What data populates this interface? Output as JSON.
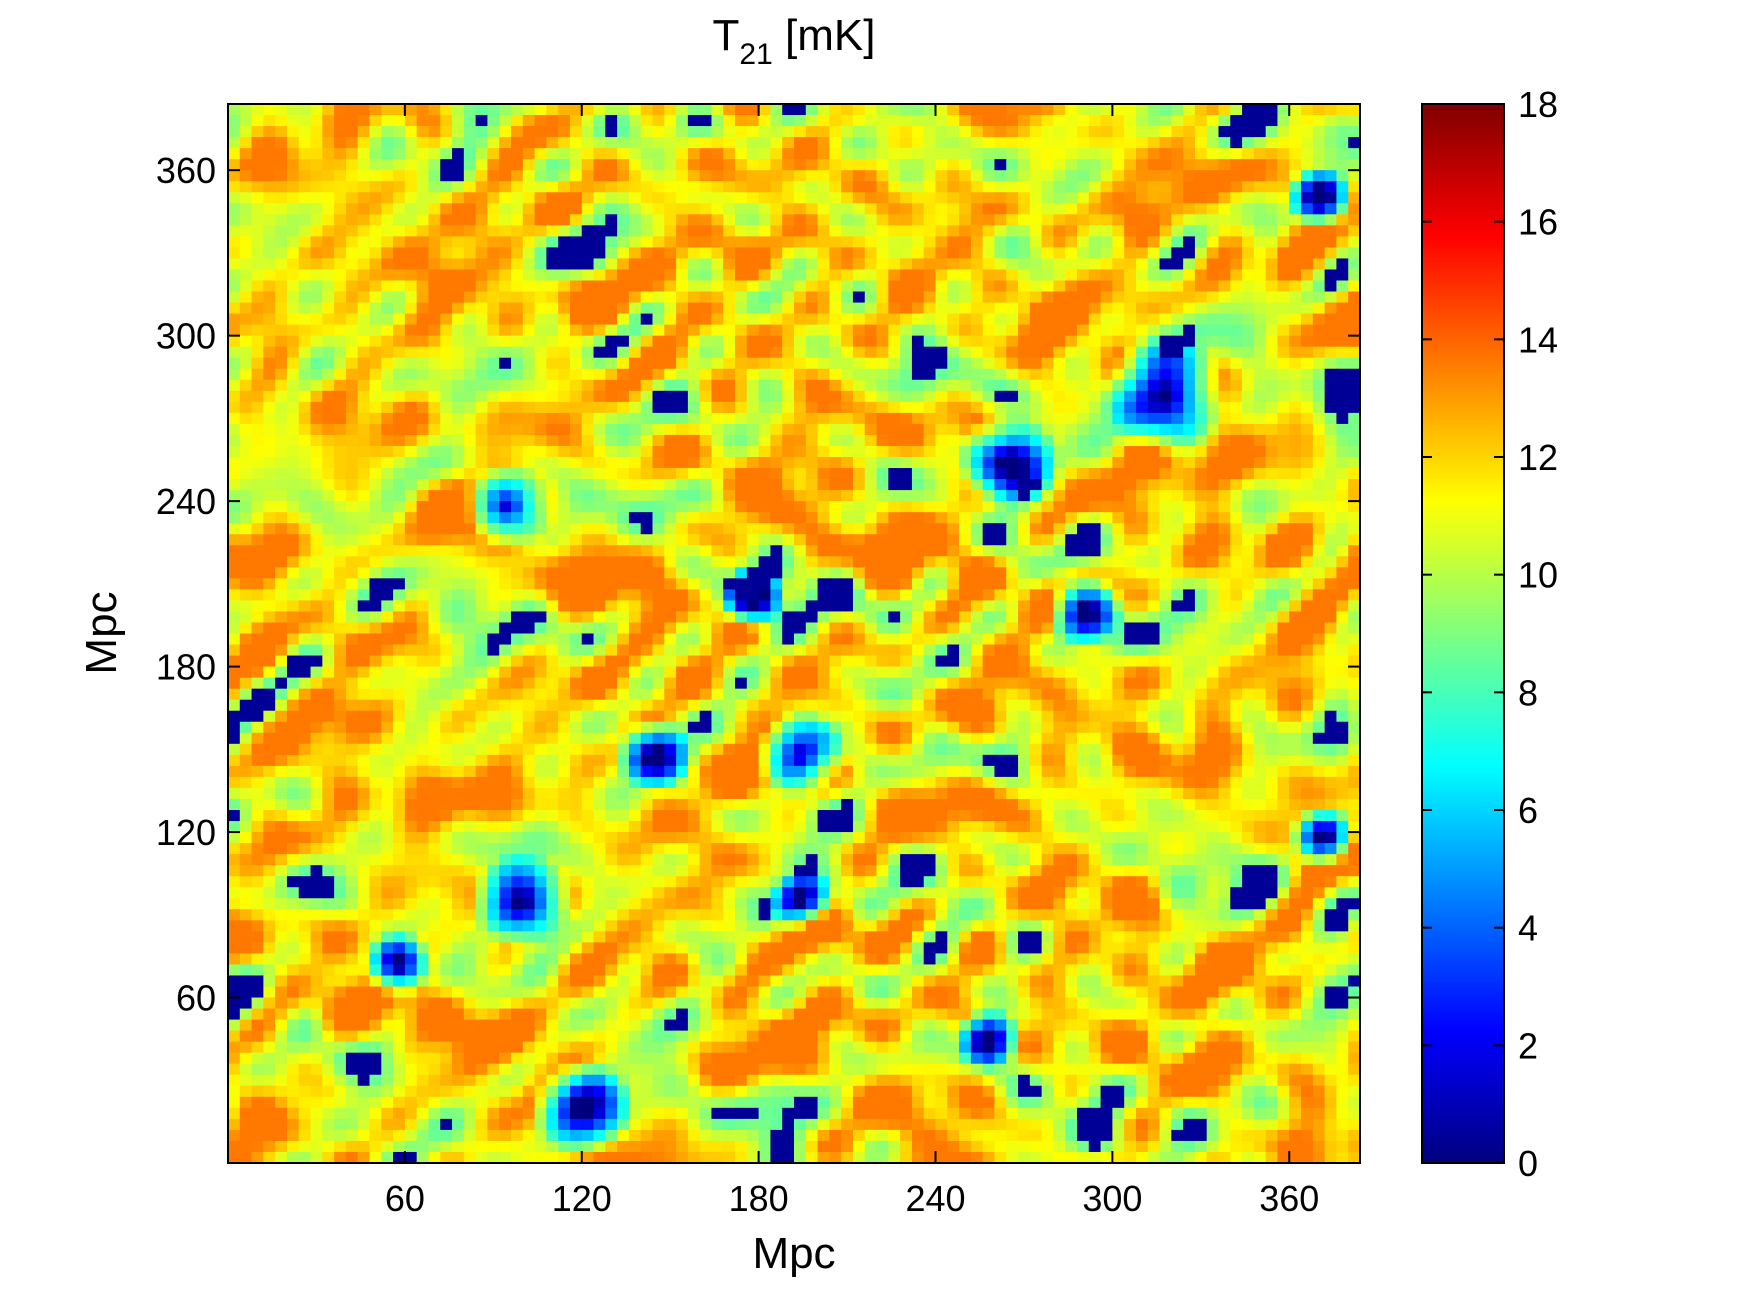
{
  "chart_data": {
    "type": "heatmap",
    "title": {
      "main": "T",
      "subscript": "21",
      "suffix": " [mK]"
    },
    "xlabel": "Mpc",
    "ylabel": "Mpc",
    "xlim": [
      0,
      384
    ],
    "ylim": [
      0,
      384
    ],
    "x_ticks": [
      60,
      120,
      180,
      240,
      300,
      360
    ],
    "y_ticks": [
      60,
      120,
      180,
      240,
      300,
      360
    ],
    "colorbar": {
      "range": [
        0,
        18
      ],
      "ticks": [
        0,
        2,
        4,
        6,
        8,
        10,
        12,
        14,
        16,
        18
      ],
      "colormap": "jet",
      "colors": [
        "#00007f",
        "#0000ff",
        "#007fff",
        "#00ffff",
        "#7fff7f",
        "#ffff00",
        "#ff7f00",
        "#ff0000",
        "#7f0000"
      ]
    },
    "field": {
      "description_value_range": [
        0,
        13.5
      ],
      "blobs": [
        {
          "x": 145,
          "y": 148,
          "r": 14
        },
        {
          "x": 195,
          "y": 148,
          "r": 16
        },
        {
          "x": 265,
          "y": 255,
          "r": 18
        },
        {
          "x": 318,
          "y": 278,
          "r": 22
        },
        {
          "x": 95,
          "y": 238,
          "r": 16
        },
        {
          "x": 100,
          "y": 95,
          "r": 18
        },
        {
          "x": 120,
          "y": 20,
          "r": 18
        },
        {
          "x": 58,
          "y": 72,
          "r": 12
        },
        {
          "x": 195,
          "y": 95,
          "r": 12
        },
        {
          "x": 258,
          "y": 45,
          "r": 12
        },
        {
          "x": 372,
          "y": 118,
          "r": 12
        },
        {
          "x": 370,
          "y": 350,
          "r": 12
        },
        {
          "x": 290,
          "y": 200,
          "r": 14
        },
        {
          "x": 178,
          "y": 205,
          "r": 12
        }
      ]
    }
  }
}
